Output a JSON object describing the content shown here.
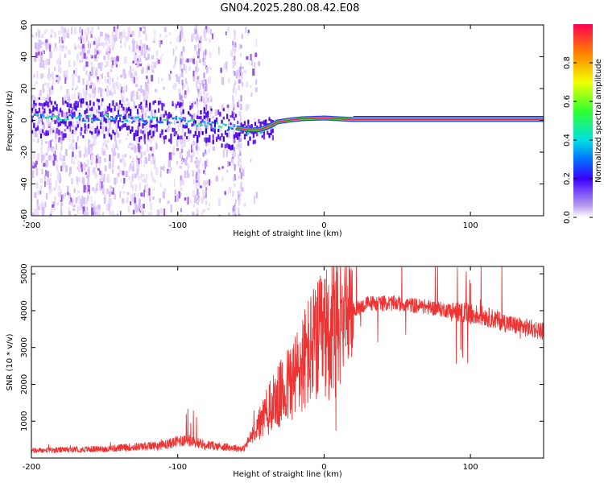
{
  "title": "GN04.2025.280.08.42.E08",
  "chart_data": [
    {
      "type": "heatmap",
      "name": "spectrogram",
      "xlabel": "Height of straight line (km)",
      "ylabel": "Frequency (Hz)",
      "xlim": [
        -200,
        150
      ],
      "ylim": [
        -60,
        60
      ],
      "xticks": [
        -200,
        -100,
        0,
        100
      ],
      "xtick_labels": [
        "-200",
        "-100",
        "0",
        "100"
      ],
      "yticks": [
        -60,
        -40,
        -20,
        0,
        20,
        40,
        60
      ],
      "ytick_labels": [
        "-60",
        "-40",
        "-20",
        "0",
        "20",
        "40",
        "60"
      ],
      "ridge": [
        [
          -200,
          3
        ],
        [
          -150,
          2
        ],
        [
          -120,
          1
        ],
        [
          -100,
          0
        ],
        [
          -80,
          -2
        ],
        [
          -65,
          -4
        ],
        [
          -52,
          -6
        ],
        [
          -45,
          -6
        ],
        [
          -38,
          -4
        ],
        [
          -32,
          -1
        ],
        [
          -25,
          0
        ],
        [
          -15,
          1
        ],
        [
          0,
          1.5
        ],
        [
          20,
          0.5
        ],
        [
          50,
          0.5
        ],
        [
          150,
          0.5
        ]
      ],
      "colorbar": {
        "label": "Normalized spectral amplitude",
        "range": [
          0,
          1
        ],
        "ticks": [
          0.0,
          0.2,
          0.4,
          0.6,
          0.8
        ],
        "tick_labels": [
          "0.0",
          "0.2",
          "0.4",
          "0.6",
          "0.8"
        ]
      }
    },
    {
      "type": "line",
      "name": "snr",
      "xlabel": "Height of straight line (km)",
      "ylabel": "SNR (10 * v/v)",
      "xlim": [
        -200,
        150
      ],
      "ylim": [
        0,
        5200
      ],
      "xticks": [
        -200,
        -100,
        0,
        100
      ],
      "xtick_labels": [
        "-200",
        "-100",
        "0",
        "100"
      ],
      "yticks": [
        1000,
        2000,
        3000,
        4000,
        5000
      ],
      "ytick_labels": [
        "1000",
        "2000",
        "3000",
        "4000",
        "5000"
      ],
      "color": "#ee3333",
      "series_envelope": [
        [
          -200,
          200
        ],
        [
          -150,
          250
        ],
        [
          -110,
          350
        ],
        [
          -95,
          500
        ],
        [
          -80,
          350
        ],
        [
          -55,
          250
        ],
        [
          -40,
          1200
        ],
        [
          -30,
          1700
        ],
        [
          -20,
          2200
        ],
        [
          -10,
          2900
        ],
        [
          0,
          3300
        ],
        [
          5,
          3500
        ],
        [
          15,
          3900
        ],
        [
          30,
          4200
        ],
        [
          50,
          4200
        ],
        [
          70,
          4100
        ],
        [
          95,
          3950
        ],
        [
          110,
          3850
        ],
        [
          130,
          3600
        ],
        [
          150,
          3450
        ]
      ]
    }
  ]
}
